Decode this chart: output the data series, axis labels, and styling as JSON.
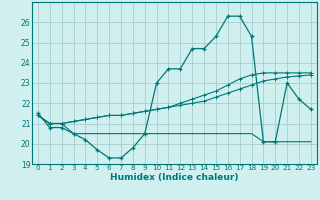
{
  "xlabel": "Humidex (Indice chaleur)",
  "bg_color": "#cff0ee",
  "grid_color": "#aacccc",
  "line_color": "#007777",
  "xlim": [
    -0.5,
    23.5
  ],
  "ylim": [
    19,
    27
  ],
  "yticks": [
    19,
    20,
    21,
    22,
    23,
    24,
    25,
    26
  ],
  "xticks": [
    0,
    1,
    2,
    3,
    4,
    5,
    6,
    7,
    8,
    9,
    10,
    11,
    12,
    13,
    14,
    15,
    16,
    17,
    18,
    19,
    20,
    21,
    22,
    23
  ],
  "line1_x": [
    0,
    1,
    2,
    3,
    4,
    5,
    6,
    7,
    8,
    9,
    10,
    11,
    12,
    13,
    14,
    15,
    16,
    17,
    18,
    19,
    20,
    21,
    22,
    23
  ],
  "line1_y": [
    21.5,
    20.8,
    20.8,
    20.5,
    20.2,
    19.7,
    19.3,
    19.3,
    19.8,
    20.5,
    23.0,
    23.7,
    23.7,
    24.7,
    24.7,
    25.3,
    26.3,
    26.3,
    25.3,
    20.1,
    20.1,
    23.0,
    22.2,
    21.7
  ],
  "line2_x": [
    0,
    1,
    2,
    3,
    4,
    5,
    6,
    7,
    8,
    9,
    10,
    11,
    12,
    13,
    14,
    15,
    16,
    17,
    18,
    19,
    20,
    21,
    22,
    23
  ],
  "line2_y": [
    21.4,
    21.0,
    21.0,
    20.5,
    20.5,
    20.5,
    20.5,
    20.5,
    20.5,
    20.5,
    20.5,
    20.5,
    20.5,
    20.5,
    20.5,
    20.5,
    20.5,
    20.5,
    20.5,
    20.1,
    20.1,
    20.1,
    20.1,
    20.1
  ],
  "line3_x": [
    0,
    1,
    2,
    3,
    4,
    5,
    6,
    7,
    8,
    9,
    10,
    11,
    12,
    13,
    14,
    15,
    16,
    17,
    18,
    19,
    20,
    21,
    22,
    23
  ],
  "line3_y": [
    21.4,
    21.0,
    21.0,
    21.1,
    21.2,
    21.3,
    21.4,
    21.4,
    21.5,
    21.6,
    21.7,
    21.8,
    21.9,
    22.0,
    22.1,
    22.3,
    22.5,
    22.7,
    22.9,
    23.1,
    23.2,
    23.3,
    23.35,
    23.4
  ],
  "line4_x": [
    0,
    1,
    2,
    3,
    4,
    5,
    6,
    7,
    8,
    9,
    10,
    11,
    12,
    13,
    14,
    15,
    16,
    17,
    18,
    19,
    20,
    21,
    22,
    23
  ],
  "line4_y": [
    21.4,
    21.0,
    21.0,
    21.1,
    21.2,
    21.3,
    21.4,
    21.4,
    21.5,
    21.6,
    21.7,
    21.8,
    22.0,
    22.2,
    22.4,
    22.6,
    22.9,
    23.2,
    23.4,
    23.5,
    23.5,
    23.5,
    23.5,
    23.5
  ]
}
